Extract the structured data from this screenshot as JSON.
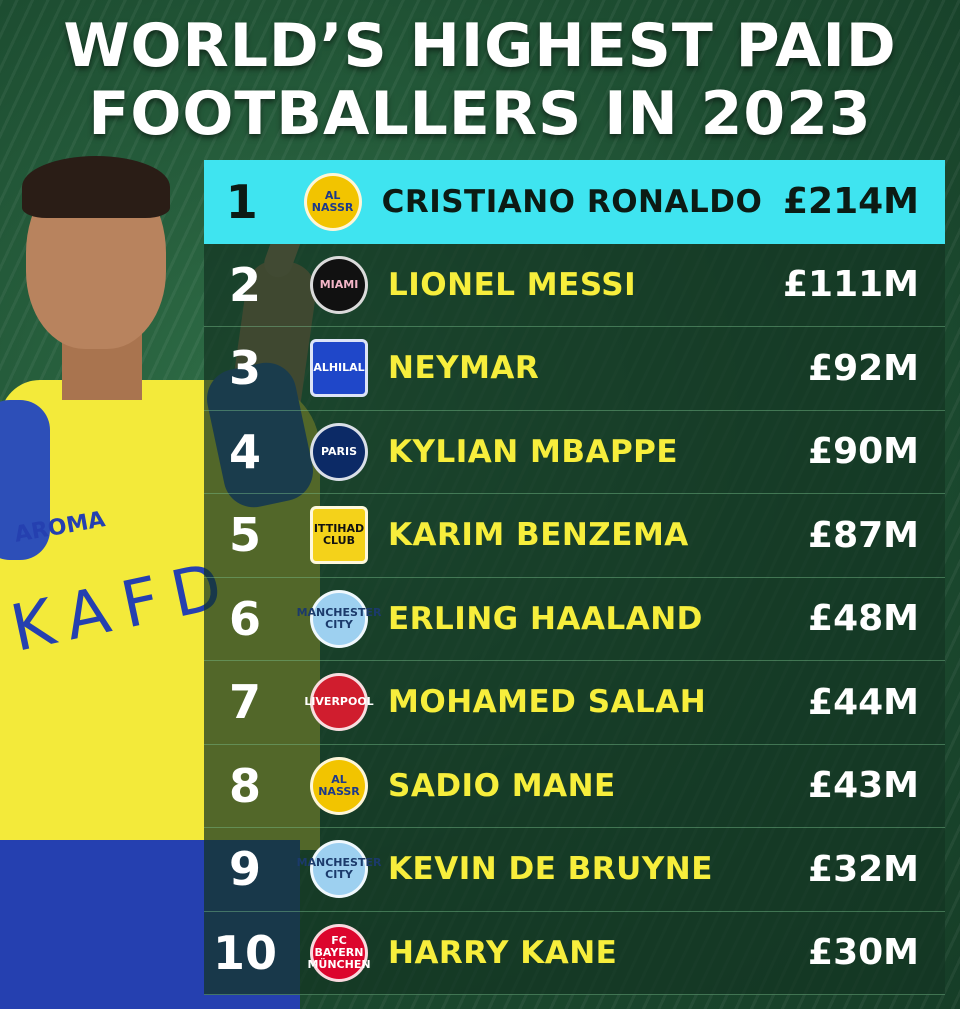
{
  "title": {
    "line1": "WORLD’S HIGHEST PAID",
    "line2": "FOOTBALLERS IN 2023"
  },
  "player_image": {
    "sponsor_text": "KAFD",
    "brand_text": "AROMA"
  },
  "rows": [
    {
      "rank": "1",
      "name": "CRISTIANO RONALDO",
      "amount": "£214M",
      "club_icon": "al-nassr-crest-icon",
      "logo_text": "AL NASSR",
      "logo_bg": "#f2c400",
      "logo_fg": "#1d3a8a",
      "highlight": true
    },
    {
      "rank": "2",
      "name": "LIONEL MESSI",
      "amount": "£111M",
      "club_icon": "inter-miami-crest-icon",
      "logo_text": "MIAMI",
      "logo_bg": "#111111",
      "logo_fg": "#f4b6c8"
    },
    {
      "rank": "3",
      "name": "NEYMAR",
      "amount": "£92M",
      "club_icon": "al-hilal-crest-icon",
      "logo_text": "ALHILAL",
      "logo_bg": "#1f47c9",
      "logo_fg": "#ffffff"
    },
    {
      "rank": "4",
      "name": "KYLIAN MBAPPE",
      "amount": "£90M",
      "club_icon": "psg-crest-icon",
      "logo_text": "PARIS",
      "logo_bg": "#0c2a66",
      "logo_fg": "#ffffff"
    },
    {
      "rank": "5",
      "name": "KARIM BENZEMA",
      "amount": "£87M",
      "club_icon": "al-ittihad-crest-icon",
      "logo_text": "ITTIHAD CLUB",
      "logo_bg": "#f4d21a",
      "logo_fg": "#111111"
    },
    {
      "rank": "6",
      "name": "ERLING HAALAND",
      "amount": "£48M",
      "club_icon": "manchester-city-crest-icon",
      "logo_text": "MANCHESTER CITY",
      "logo_bg": "#9dd0f0",
      "logo_fg": "#1b3a6b"
    },
    {
      "rank": "7",
      "name": "MOHAMED SALAH",
      "amount": "£44M",
      "club_icon": "liverpool-crest-icon",
      "logo_text": "LIVERPOOL",
      "logo_bg": "#d01d2e",
      "logo_fg": "#ffffff"
    },
    {
      "rank": "8",
      "name": "SADIO MANE",
      "amount": "£43M",
      "club_icon": "al-nassr-crest-icon",
      "logo_text": "AL NASSR",
      "logo_bg": "#f2c400",
      "logo_fg": "#1d3a8a"
    },
    {
      "rank": "9",
      "name": "KEVIN DE BRUYNE",
      "amount": "£32M",
      "club_icon": "manchester-city-crest-icon",
      "logo_text": "MANCHESTER CITY",
      "logo_bg": "#9dd0f0",
      "logo_fg": "#1b3a6b"
    },
    {
      "rank": "10",
      "name": "HARRY KANE",
      "amount": "£30M",
      "club_icon": "bayern-munich-crest-icon",
      "logo_text": "FC BAYERN MÜNCHEN",
      "logo_bg": "#dc052d",
      "logo_fg": "#ffffff"
    }
  ],
  "colors": {
    "highlight_row": "#3fe4f0",
    "name_text": "#f7ee3c",
    "background": "#1c4a30"
  }
}
